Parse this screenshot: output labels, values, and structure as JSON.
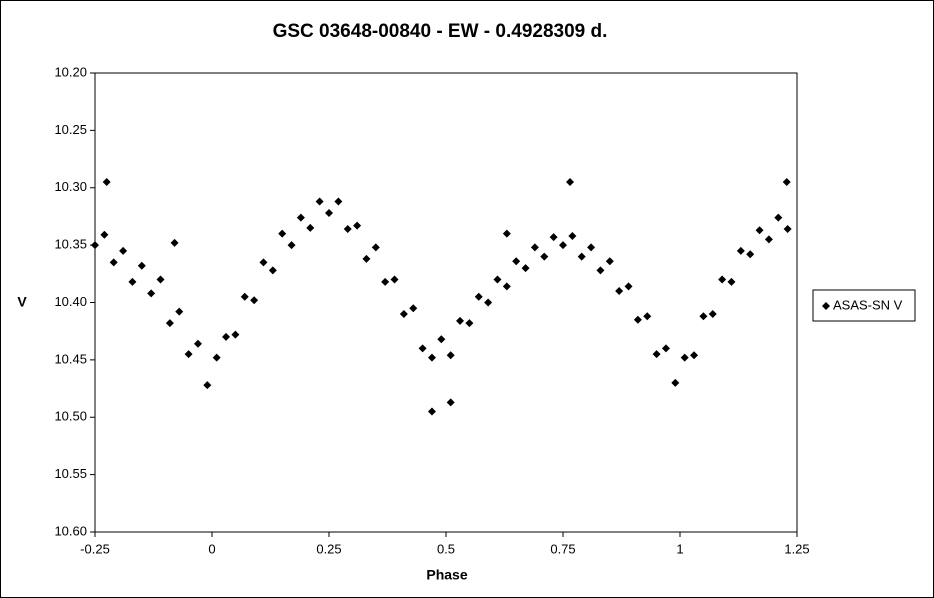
{
  "chart_data": {
    "type": "scatter",
    "title": "GSC 03648-00840  - EW - 0.4928309  d.",
    "x_label": "Phase",
    "y_label": "V",
    "xlim": [
      -0.25,
      1.25
    ],
    "xticks": [
      -0.25,
      0,
      0.25,
      0.5,
      0.75,
      1,
      1.25
    ],
    "ylim": [
      10.2,
      10.6
    ],
    "y_reversed": true,
    "yticks": [
      {
        "value": 10.2,
        "label": "10.20"
      },
      {
        "value": 10.25,
        "label": "10.25"
      },
      {
        "value": 10.3,
        "label": "10.30"
      },
      {
        "value": 10.35,
        "label": "10.35"
      },
      {
        "value": 10.4,
        "label": "10.40"
      },
      {
        "value": 10.45,
        "label": "10.45"
      },
      {
        "value": 10.5,
        "label": "10.50"
      },
      {
        "value": 10.55,
        "label": "10.55"
      },
      {
        "value": 10.6,
        "label": "10.60"
      }
    ],
    "grid": false,
    "legend": "right",
    "x": [
      -0.25,
      -0.23,
      -0.21,
      -0.19,
      -0.17,
      -0.15,
      -0.13,
      -0.11,
      -0.09,
      -0.07,
      -0.05,
      -0.03,
      -0.01,
      0.01,
      0.03,
      0.05,
      0.07,
      0.09,
      0.11,
      0.13,
      0.15,
      0.17,
      0.19,
      0.21,
      0.23,
      0.25,
      0.27,
      0.29,
      0.31,
      0.33,
      0.35,
      0.37,
      0.39,
      0.41,
      0.43,
      0.45,
      0.47,
      0.49,
      0.51,
      0.53,
      0.55,
      0.57,
      0.59,
      0.61,
      0.63,
      0.65,
      0.67,
      0.69,
      0.71,
      0.73,
      0.75,
      0.77,
      0.79,
      0.81,
      0.83,
      0.85,
      0.87,
      0.89,
      0.91,
      0.93,
      0.95,
      0.97,
      0.99,
      1.01,
      1.03,
      1.05,
      1.07,
      1.09,
      1.11,
      1.13,
      1.15,
      1.17,
      1.19,
      1.21,
      1.23,
      -0.225,
      0.47,
      0.51,
      0.765,
      1.228,
      -0.08,
      0.63
    ],
    "series": [
      {
        "name": "ASAS-SN V",
        "color": "#000000",
        "values": [
          10.35,
          10.341,
          10.365,
          10.355,
          10.382,
          10.368,
          10.392,
          10.38,
          10.418,
          10.408,
          10.445,
          10.436,
          10.472,
          10.448,
          10.43,
          10.428,
          10.395,
          10.398,
          10.365,
          10.372,
          10.34,
          10.35,
          10.326,
          10.335,
          10.312,
          10.322,
          10.312,
          10.336,
          10.333,
          10.362,
          10.352,
          10.382,
          10.38,
          10.41,
          10.405,
          10.44,
          10.448,
          10.432,
          10.446,
          10.416,
          10.418,
          10.395,
          10.4,
          10.38,
          10.386,
          10.364,
          10.37,
          10.352,
          10.36,
          10.343,
          10.35,
          10.342,
          10.36,
          10.352,
          10.372,
          10.364,
          10.39,
          10.386,
          10.415,
          10.412,
          10.445,
          10.44,
          10.47,
          10.448,
          10.446,
          10.412,
          10.41,
          10.38,
          10.382,
          10.355,
          10.358,
          10.337,
          10.345,
          10.326,
          10.336,
          10.295,
          10.495,
          10.487,
          10.295,
          10.295,
          10.348,
          10.34
        ]
      }
    ]
  }
}
